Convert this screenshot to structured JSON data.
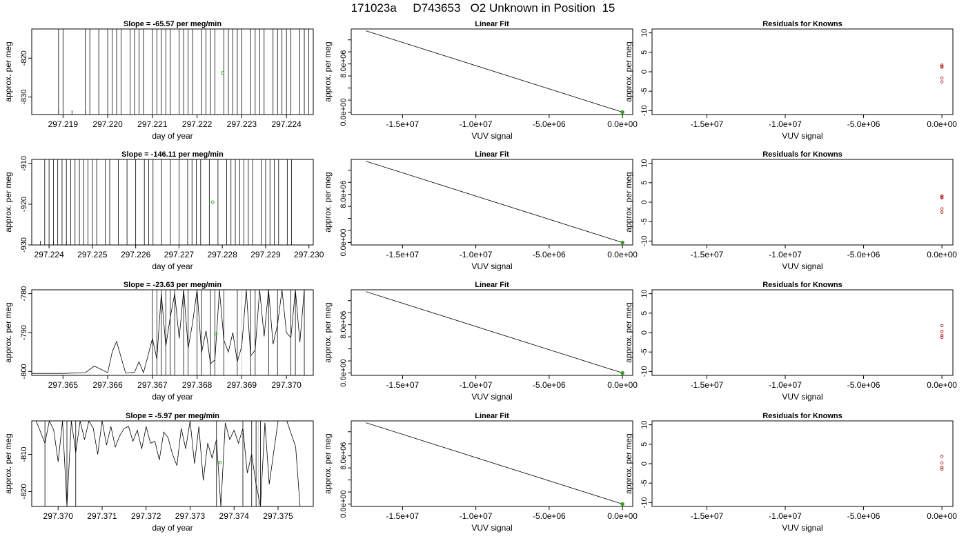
{
  "page_title": "171023a     D743653   O2 Unknown in Position  15",
  "colors": {
    "frame": "#000000",
    "trace": "#000000",
    "point_green": "#22bb22",
    "residual_red": "#b22222",
    "faint_line": "#cccccc"
  },
  "chart_data": [
    {
      "type": "line",
      "title": "Slope =  -65.57  per meg/min",
      "xlabel": "day of year",
      "ylabel": "approx. per meg",
      "xlim": [
        297.2183,
        297.2246
      ],
      "ylim": [
        -834.5,
        -812.5
      ],
      "xticks": [
        297.219,
        297.22,
        297.221,
        297.222,
        297.223,
        297.224
      ],
      "yticks": [
        -820,
        -830
      ],
      "ytick_labels": [
        "-820",
        "-830"
      ],
      "trace_x": [
        297.2189,
        297.2192,
        297.2195,
        297.2198,
        297.2201,
        297.2203,
        297.2206,
        297.2209,
        297.2212,
        297.2214,
        297.2217,
        297.222,
        297.2223,
        297.2225,
        297.2228,
        297.2231,
        297.2234,
        297.2237,
        297.224,
        297.2242,
        297.2244
      ],
      "vline_x": [
        297.2189,
        297.219,
        297.2195,
        297.2196,
        297.2198,
        297.22,
        297.2201,
        297.2202,
        297.2203,
        297.2205,
        297.2206,
        297.2207,
        297.2208,
        297.221,
        297.2211,
        297.2212,
        297.2213,
        297.2214,
        297.2216,
        297.2217,
        297.2218,
        297.2219,
        297.2221,
        297.2222,
        297.2223,
        297.2224,
        297.2226,
        297.2227,
        297.2228,
        297.2229,
        297.223,
        297.2232,
        297.2233,
        297.2234,
        297.2235,
        297.2237,
        297.2238,
        297.2239,
        297.224,
        297.2241,
        297.2243,
        297.2244,
        297.2245
      ],
      "point": {
        "x": 297.22257,
        "y": -823.8
      }
    },
    {
      "type": "line",
      "title": "Linear Fit",
      "xlabel": "VUV signal",
      "ylabel": "",
      "xlim": [
        -18500000,
        700000
      ],
      "ylim": [
        -400000,
        13800000
      ],
      "xticks": [
        -15000000,
        -10000000,
        -5000000,
        0
      ],
      "xtick_labels": [
        "-1.5e+07",
        "-1.0e+07",
        "-5.0e+06",
        "0.0e+00"
      ],
      "yticks": [
        0,
        2000000,
        4000000,
        6000000,
        8000000,
        10000000,
        12000000
      ],
      "ytick_labels": [
        "0.0e+00",
        "",
        "",
        "",
        "8.0e+06",
        "",
        ""
      ],
      "line": [
        [
          -17500000,
          13500000
        ],
        [
          0,
          0
        ]
      ],
      "points": [
        [
          0,
          0
        ]
      ]
    },
    {
      "type": "scatter",
      "title": "Residuals for Knowns",
      "xlabel": "VUV signal",
      "ylabel": "approx. per meg",
      "xlim": [
        -18500000,
        700000
      ],
      "ylim": [
        -11,
        11
      ],
      "xticks": [
        -15000000,
        -10000000,
        -5000000,
        0
      ],
      "xtick_labels": [
        "-1.5e+07",
        "-1.0e+07",
        "-5.0e+06",
        "0.0e+00"
      ],
      "yticks": [
        10,
        5,
        0,
        -5,
        -10
      ],
      "ytick_labels": [
        "10",
        "5",
        "0",
        "-5",
        "-10"
      ],
      "points": [
        [
          0,
          1.7
        ],
        [
          0,
          1.4
        ],
        [
          0,
          1.2
        ],
        [
          0,
          -1.6
        ],
        [
          0,
          -2.6
        ]
      ]
    },
    {
      "type": "line",
      "title": "Slope =  -146.11  per meg/min",
      "xlabel": "day of year",
      "ylabel": "approx. per meg",
      "xlim": [
        297.2236,
        297.2301
      ],
      "ylim": [
        -930,
        -909
      ],
      "xticks": [
        297.224,
        297.225,
        297.226,
        297.227,
        297.228,
        297.229,
        297.23
      ],
      "yticks": [
        -910,
        -920,
        -930
      ],
      "ytick_labels": [
        "-910",
        "-920",
        "-930"
      ],
      "trace_x": [
        297.2238,
        297.2241,
        297.2244,
        297.2247,
        297.225,
        297.2254,
        297.2257,
        297.226,
        297.2263,
        297.2266,
        297.2269,
        297.2272,
        297.2275,
        297.2278,
        297.2281,
        297.2284,
        297.2287,
        297.229,
        297.2293,
        297.2296
      ],
      "vline_x": [
        297.2239,
        297.224,
        297.2241,
        297.2242,
        297.2243,
        297.2244,
        297.2245,
        297.2246,
        297.2247,
        297.2248,
        297.2249,
        297.225,
        297.2251,
        297.2253,
        297.2254,
        297.2256,
        297.2258,
        297.226,
        297.2262,
        297.2263,
        297.2264,
        297.2266,
        297.2268,
        297.227,
        297.2272,
        297.2273,
        297.2274,
        297.2275,
        297.2277,
        297.2279,
        297.2281,
        297.2282,
        297.2283,
        297.2284,
        297.2285,
        297.2286,
        297.2287,
        297.2289,
        297.229,
        297.2291,
        297.2292,
        297.2293,
        297.2295,
        297.2296
      ],
      "point": {
        "x": 297.22778,
        "y": -919.5
      }
    },
    {
      "type": "line",
      "title": "Linear Fit",
      "xlabel": "VUV signal",
      "ylabel": "",
      "xlim": [
        -18500000,
        700000
      ],
      "ylim": [
        -400000,
        13800000
      ],
      "xticks": [
        -15000000,
        -10000000,
        -5000000,
        0
      ],
      "xtick_labels": [
        "-1.5e+07",
        "-1.0e+07",
        "-5.0e+06",
        "0.0e+00"
      ],
      "yticks": [
        0,
        2000000,
        4000000,
        6000000,
        8000000,
        10000000,
        12000000
      ],
      "ytick_labels": [
        "0.0e+00",
        "",
        "",
        "",
        "8.0e+06",
        "",
        ""
      ],
      "line": [
        [
          -17500000,
          13500000
        ],
        [
          0,
          0
        ]
      ],
      "points": [
        [
          0,
          0
        ]
      ]
    },
    {
      "type": "scatter",
      "title": "Residuals for Knowns",
      "xlabel": "VUV signal",
      "ylabel": "approx. per meg",
      "xlim": [
        -18500000,
        700000
      ],
      "ylim": [
        -11,
        11
      ],
      "xticks": [
        -15000000,
        -10000000,
        -5000000,
        0
      ],
      "xtick_labels": [
        "-1.5e+07",
        "-1.0e+07",
        "-5.0e+06",
        "0.0e+00"
      ],
      "yticks": [
        10,
        5,
        0,
        -5,
        -10
      ],
      "ytick_labels": [
        "10",
        "5",
        "0",
        "-5",
        "-10"
      ],
      "points": [
        [
          0,
          1.6
        ],
        [
          0,
          1.3
        ],
        [
          0,
          1.1
        ],
        [
          0,
          -1.7
        ],
        [
          0,
          -2.6
        ]
      ]
    },
    {
      "type": "line",
      "title": "Slope =  -23.63  per meg/min",
      "xlabel": "day of year",
      "ylabel": "approx. per meg",
      "xlim": [
        297.3643,
        297.3706
      ],
      "ylim": [
        -801,
        -779
      ],
      "xticks": [
        297.365,
        297.366,
        297.367,
        297.368,
        297.369,
        297.37
      ],
      "yticks": [
        -780,
        -790,
        -800
      ],
      "ytick_labels": [
        "-780",
        "-790",
        "-800"
      ],
      "trace_x": [
        297.3643,
        297.365,
        297.3655,
        297.3657,
        297.366,
        297.3661,
        297.3662,
        297.3664,
        297.3666,
        297.3667,
        297.3668,
        297.3669,
        297.367,
        297.3671,
        297.3672,
        297.3673,
        297.3674,
        297.3675,
        297.3676,
        297.3677,
        297.3678,
        297.3679,
        297.368,
        297.3681,
        297.3682,
        297.3683,
        297.3684,
        297.3685,
        297.3686,
        297.3687,
        297.3688,
        297.3689,
        297.369,
        297.3691,
        297.3692,
        297.3693,
        297.3694,
        297.3695,
        297.3696,
        297.3697,
        297.3698,
        297.3699,
        297.37,
        297.3701,
        297.3702,
        297.3703,
        297.3704
      ],
      "trace_y": [
        -800.5,
        -800.5,
        -800.3,
        -798.6,
        -800.3,
        -795,
        -792.3,
        -800.4,
        -800.2,
        -797.5,
        -800.3,
        -796,
        -791.5,
        -796.8,
        -780,
        -793.5,
        -786,
        -780,
        -791.5,
        -779,
        -794,
        -787.5,
        -779,
        -795.2,
        -789.5,
        -798,
        -797,
        -779,
        -792,
        -795,
        -790,
        -797.5,
        -793.5,
        -779,
        -796,
        -794.5,
        -779,
        -791,
        -779,
        -793,
        -788,
        -779,
        -790,
        -791.3,
        -779,
        -792.5,
        -779
      ],
      "vline_x": [
        297.367,
        297.3671,
        297.3672,
        297.3673,
        297.3674,
        297.3675,
        297.3677,
        297.3678,
        297.368,
        297.3681,
        297.3683,
        297.3684,
        297.3686,
        297.3689,
        297.3692,
        297.3693,
        297.3696,
        297.3698,
        297.3701,
        297.3702,
        297.3704
      ],
      "faint_x": [
        297.369
      ],
      "point": {
        "x": 297.36842,
        "y": -790.3
      }
    },
    {
      "type": "line",
      "title": "Linear Fit",
      "xlabel": "VUV signal",
      "ylabel": "",
      "xlim": [
        -18500000,
        700000
      ],
      "ylim": [
        -400000,
        13800000
      ],
      "xticks": [
        -15000000,
        -10000000,
        -5000000,
        0
      ],
      "xtick_labels": [
        "-1.5e+07",
        "-1.0e+07",
        "-5.0e+06",
        "0.0e+00"
      ],
      "yticks": [
        0,
        2000000,
        4000000,
        6000000,
        8000000,
        10000000,
        12000000
      ],
      "ytick_labels": [
        "0.0e+00",
        "",
        "",
        "",
        "8.0e+06",
        "",
        ""
      ],
      "line": [
        [
          -17500000,
          13500000
        ],
        [
          0,
          0
        ]
      ],
      "points": [
        [
          0,
          0
        ]
      ]
    },
    {
      "type": "scatter",
      "title": "Residuals for Knowns",
      "xlabel": "VUV signal",
      "ylabel": "approx. per meg",
      "xlim": [
        -18500000,
        700000
      ],
      "ylim": [
        -11,
        11
      ],
      "xticks": [
        -15000000,
        -10000000,
        -5000000,
        0
      ],
      "xtick_labels": [
        "-1.5e+07",
        "-1.0e+07",
        "-5.0e+06",
        "0.0e+00"
      ],
      "yticks": [
        10,
        5,
        0,
        -5,
        -10
      ],
      "ytick_labels": [
        "10",
        "5",
        "0",
        "-5",
        "-10"
      ],
      "points": [
        [
          0,
          1.8
        ],
        [
          0,
          0.3
        ],
        [
          0,
          -0.7
        ],
        [
          0,
          -1.2
        ]
      ]
    },
    {
      "type": "line",
      "title": "Slope =  -5.97  per meg/min",
      "xlabel": "day of year",
      "ylabel": "approx. per meg",
      "xlim": [
        297.3694,
        297.3758
      ],
      "ylim": [
        -824,
        -801
      ],
      "xticks": [
        297.37,
        297.371,
        297.372,
        297.373,
        297.374,
        297.375
      ],
      "yticks": [
        -810,
        -820
      ],
      "ytick_labels": [
        "-810",
        "-820"
      ],
      "trace_x": [
        297.3695,
        297.3697,
        297.3698,
        297.3699,
        297.37,
        297.3701,
        297.3702,
        297.3703,
        297.3704,
        297.3705,
        297.3706,
        297.3707,
        297.3708,
        297.3709,
        297.371,
        297.3711,
        297.3712,
        297.3713,
        297.3714,
        297.3715,
        297.3716,
        297.3717,
        297.3718,
        297.3719,
        297.372,
        297.3721,
        297.3722,
        297.3723,
        297.3724,
        297.3725,
        297.3726,
        297.3727,
        297.3728,
        297.3729,
        297.373,
        297.3731,
        297.3732,
        297.3733,
        297.3734,
        297.3735,
        297.3736,
        297.3737,
        297.3738,
        297.3739,
        297.374,
        297.3741,
        297.3742,
        297.3743,
        297.3744,
        297.3745,
        297.3746,
        297.3747,
        297.3748,
        297.375,
        297.3752,
        297.3754,
        297.3755
      ],
      "trace_y": [
        -801,
        -807,
        -801,
        -803.5,
        -812,
        -801,
        -824,
        -801,
        -809.5,
        -801,
        -806,
        -801,
        -803,
        -810,
        -801,
        -807.5,
        -802.5,
        -808,
        -805,
        -803,
        -802.5,
        -806.5,
        -803.5,
        -808.5,
        -802.5,
        -807,
        -806.5,
        -811.5,
        -804,
        -805.5,
        -810,
        -813,
        -803,
        -808.5,
        -801,
        -812.5,
        -802.5,
        -817,
        -807,
        -811,
        -806,
        -824,
        -801.5,
        -806,
        -803.5,
        -807,
        -803,
        -815,
        -810,
        -818,
        -824,
        -801.5,
        -818,
        -801,
        -801,
        -808,
        -824
      ],
      "vline_x": [
        297.3697,
        297.3702,
        297.3704,
        297.3736,
        297.3742,
        297.3744,
        297.3745,
        297.3746
      ],
      "faint_x": [
        297.37455
      ],
      "point": {
        "x": 297.37368,
        "y": -812.2
      }
    },
    {
      "type": "line",
      "title": "Linear Fit",
      "xlabel": "VUV signal",
      "ylabel": "",
      "xlim": [
        -18500000,
        700000
      ],
      "ylim": [
        -400000,
        13800000
      ],
      "xticks": [
        -15000000,
        -10000000,
        -5000000,
        0
      ],
      "xtick_labels": [
        "-1.5e+07",
        "-1.0e+07",
        "-5.0e+06",
        "0.0e+00"
      ],
      "yticks": [
        0,
        2000000,
        4000000,
        6000000,
        8000000,
        10000000,
        12000000
      ],
      "ytick_labels": [
        "0.0e+00",
        "",
        "",
        "",
        "8.0e+06",
        "",
        ""
      ],
      "line": [
        [
          -17500000,
          13500000
        ],
        [
          0,
          0
        ]
      ],
      "points": [
        [
          0,
          0
        ]
      ]
    },
    {
      "type": "scatter",
      "title": "Residuals for Knowns",
      "xlabel": "VUV signal",
      "ylabel": "approx. per meg",
      "xlim": [
        -18500000,
        700000
      ],
      "ylim": [
        -11,
        11
      ],
      "xticks": [
        -15000000,
        -10000000,
        -5000000,
        0
      ],
      "xtick_labels": [
        "-1.5e+07",
        "-1.0e+07",
        "-5.0e+06",
        "0.0e+00"
      ],
      "yticks": [
        10,
        5,
        0,
        -5,
        -10
      ],
      "ytick_labels": [
        "10",
        "5",
        "0",
        "-5",
        "-10"
      ],
      "points": [
        [
          0,
          1.9
        ],
        [
          0,
          0.2
        ],
        [
          0,
          -0.9
        ],
        [
          0,
          -1.4
        ]
      ]
    }
  ]
}
